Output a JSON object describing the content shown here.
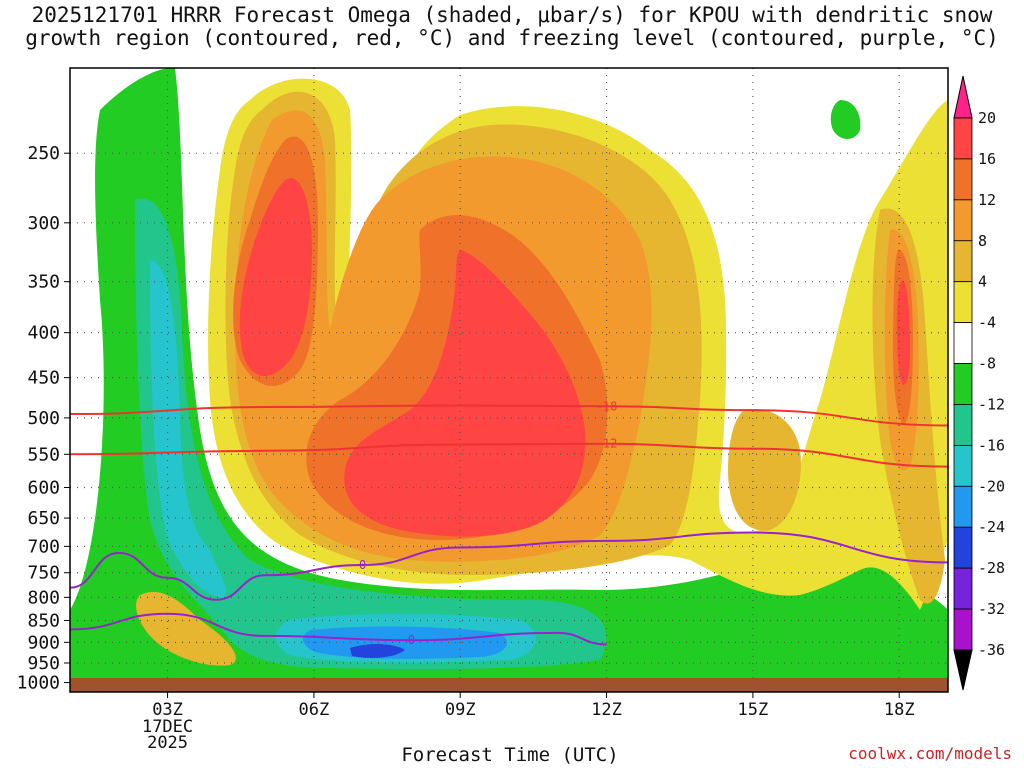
{
  "title_line1": "2025121701 HRRR Forecast Omega (shaded, μbar/s) for KPOU with dendritic snow",
  "title_line2": "growth region (contoured, red, °C) and freezing level (contoured, purple, °C)",
  "credit": "coolwx.com/models",
  "chart_data": {
    "type": "heatmap",
    "xlabel": "Forecast Time (UTC)",
    "ylabel": "",
    "x_ticks": [
      "03Z",
      "06Z",
      "09Z",
      "12Z",
      "15Z",
      "18Z"
    ],
    "x_tick_hours": [
      3,
      6,
      9,
      12,
      15,
      18
    ],
    "x_range_hours": [
      1,
      19
    ],
    "date_label": [
      "17DEC",
      "2025"
    ],
    "y_ticks": [
      250,
      300,
      350,
      400,
      450,
      500,
      550,
      600,
      650,
      700,
      750,
      800,
      850,
      900,
      950,
      1000
    ],
    "y_range_hPa": [
      200,
      1025
    ],
    "y_scale": "log-pressure",
    "grid": "dotted",
    "colorbar": {
      "labels": [
        "20",
        "16",
        "12",
        "8",
        "4",
        "-4",
        "-8",
        "-12",
        "-16",
        "-20",
        "-24",
        "-28",
        "-32",
        "-36"
      ],
      "colors": [
        "#ff2288",
        "#ff4444",
        "#f0722a",
        "#f29a2d",
        "#e6b630",
        "#ece035",
        "#ffffff",
        "#22cc22",
        "#22c68c",
        "#26c4cc",
        "#2299f0",
        "#2244dd",
        "#7722dd",
        "#aa11cc",
        "#aaaaaa",
        "#000000"
      ]
    },
    "contours": [
      {
        "label": "-18",
        "color": "#ee3333",
        "points": [
          [
            1,
            495
          ],
          [
            5,
            486
          ],
          [
            9,
            484
          ],
          [
            12,
            485
          ],
          [
            15,
            490
          ],
          [
            19,
            510
          ]
        ]
      },
      {
        "label": "-12",
        "color": "#ee3333",
        "points": [
          [
            1,
            550
          ],
          [
            5,
            545
          ],
          [
            9,
            536
          ],
          [
            12,
            535
          ],
          [
            15,
            542
          ],
          [
            19,
            568
          ]
        ]
      },
      {
        "label": "0",
        "color": "#9922cc",
        "points": [
          [
            1,
            780
          ],
          [
            2,
            712
          ],
          [
            3,
            760
          ],
          [
            4,
            805
          ],
          [
            5,
            755
          ],
          [
            7,
            735
          ],
          [
            9,
            702
          ],
          [
            12,
            690
          ],
          [
            15,
            675
          ],
          [
            19,
            730
          ]
        ]
      },
      {
        "label": "0",
        "color": "#9922cc",
        "points": [
          [
            1,
            870
          ],
          [
            3,
            835
          ],
          [
            5,
            885
          ],
          [
            8,
            895
          ],
          [
            11,
            878
          ],
          [
            12,
            905
          ]
        ]
      }
    ]
  }
}
